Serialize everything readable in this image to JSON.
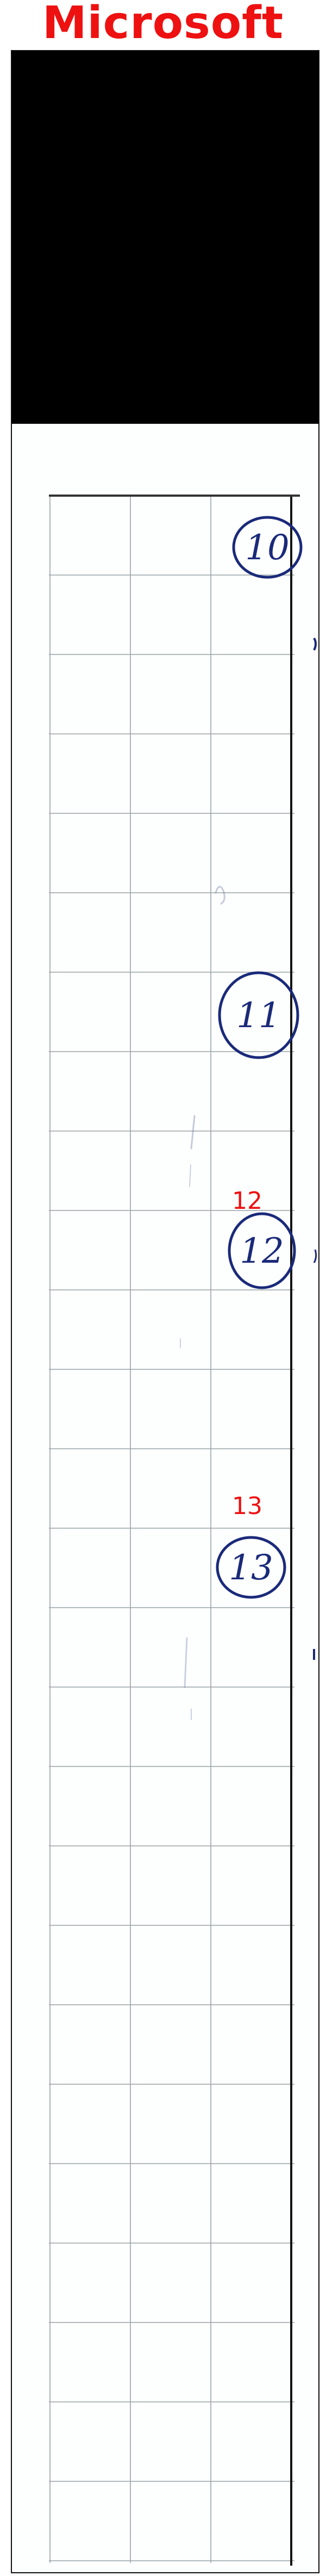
{
  "header": {
    "brand_text": "Microsoft",
    "brand_color": "#ee1111"
  },
  "scan": {
    "redaction_color": "#000000",
    "ink_color": "#1a2a7a",
    "grid_color": "#9aa4a6",
    "circled_numbers": [
      {
        "number": "10",
        "printed_label": ""
      },
      {
        "number": "11",
        "printed_label": ""
      },
      {
        "number": "12",
        "printed_label": "12"
      },
      {
        "number": "13",
        "printed_label": "13"
      }
    ]
  }
}
